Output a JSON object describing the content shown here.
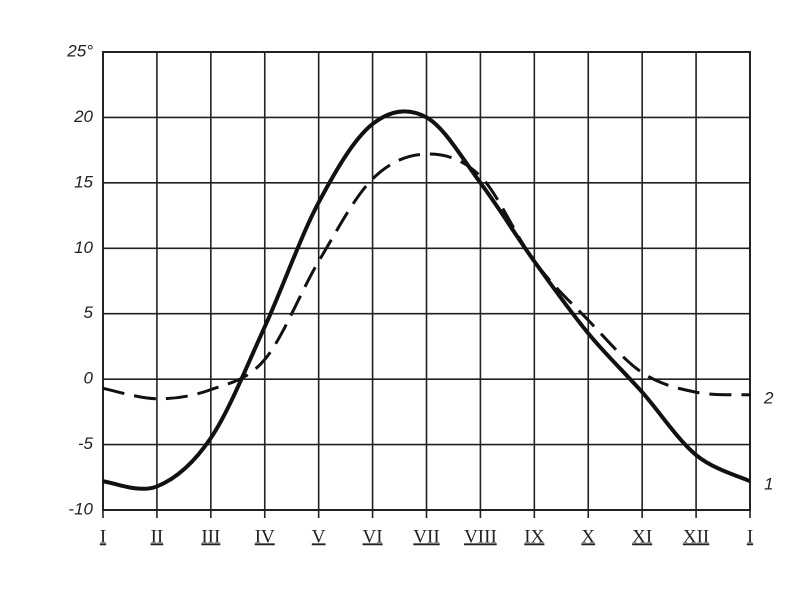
{
  "chart_data": {
    "type": "line",
    "categories": [
      "I",
      "II",
      "III",
      "IV",
      "V",
      "VI",
      "VII",
      "VIII",
      "IX",
      "X",
      "XI",
      "XII",
      "I"
    ],
    "series": [
      {
        "name": "1",
        "color": "#111111",
        "dash": false,
        "values": [
          -7.8,
          -8.2,
          -4.5,
          4,
          13.5,
          19.5,
          20,
          15,
          9,
          3.5,
          -1,
          -5.8,
          -7.8
        ]
      },
      {
        "name": "2",
        "color": "#111111",
        "dash": true,
        "values": [
          -0.7,
          -1.5,
          -0.8,
          1.5,
          9,
          15.3,
          17.2,
          15.5,
          9,
          4.5,
          0.5,
          -1,
          -1.2
        ]
      }
    ],
    "ylim": [
      -10,
      25
    ],
    "yticks": [
      -10,
      -5,
      0,
      5,
      10,
      15,
      20,
      {
        "value": 25,
        "label": "25°"
      }
    ],
    "grid": true
  }
}
